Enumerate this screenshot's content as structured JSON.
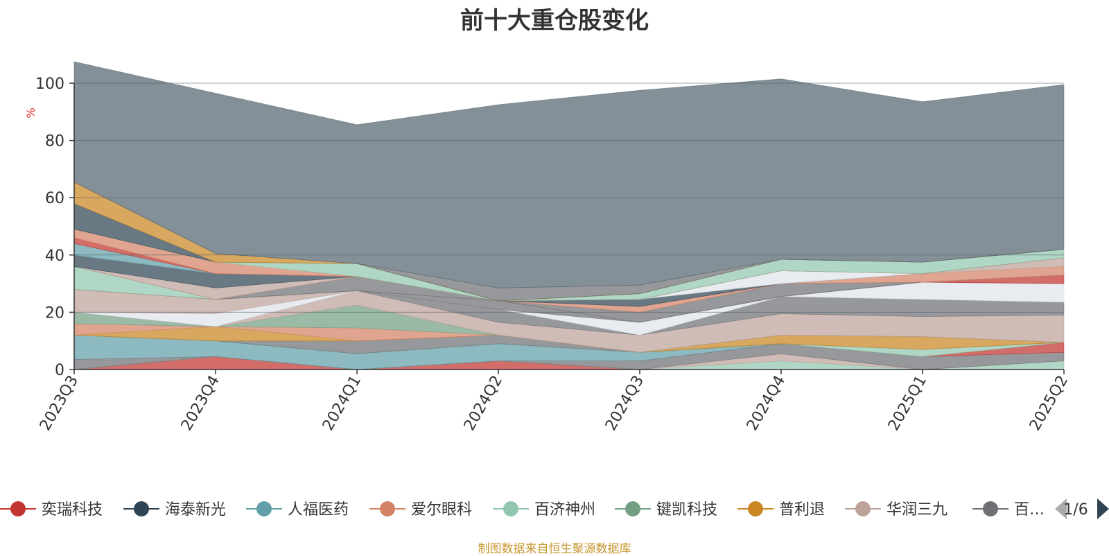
{
  "title": "前十大重仓股变化",
  "footer": "制图数据来自恒生聚源数据库",
  "legend": {
    "page_indicator": "1/6",
    "prev_icon": "triangle-left-icon",
    "next_icon": "triangle-right-icon",
    "items": [
      {
        "name": "奕瑞科技",
        "color": "#c23531"
      },
      {
        "name": "海泰新光",
        "color": "#2f4554"
      },
      {
        "name": "人福医药",
        "color": "#61a0a8"
      },
      {
        "name": "爱尔眼科",
        "color": "#d48265"
      },
      {
        "name": "百济神州",
        "color": "#91c7ae"
      },
      {
        "name": "键凯科技",
        "color": "#749f83"
      },
      {
        "name": "普利退",
        "color": "#ca8622"
      },
      {
        "name": "华润三九",
        "color": "#bda29a"
      },
      {
        "name": "百…",
        "color": "#6e7074"
      }
    ]
  },
  "chart_data": {
    "type": "area",
    "stacked": true,
    "title": "前十大重仓股变化",
    "ylabel": "%",
    "ylim": [
      0,
      100
    ],
    "yticks": [
      0,
      20,
      40,
      60,
      80,
      100
    ],
    "grid": true,
    "x": [
      "2023Q3",
      "2023Q4",
      "2024Q1",
      "2024Q2",
      "2024Q3",
      "2024Q4",
      "2025Q1",
      "2025Q2"
    ],
    "series": [
      {
        "name": "奕瑞科技",
        "color": "#c23531",
        "values": [
          0.0,
          4.5,
          0.0,
          3.0,
          0.0,
          0.0,
          0.0,
          0.0
        ]
      },
      {
        "name": "",
        "color": "#91c7ae",
        "values": [
          0.0,
          0.0,
          0.0,
          0.0,
          0.0,
          3.0,
          0.0,
          3.0
        ]
      },
      {
        "name": "",
        "color": "#bda29a",
        "values": [
          0.0,
          0.0,
          0.0,
          0.0,
          0.0,
          2.5,
          0.0,
          0.0
        ]
      },
      {
        "name": "",
        "color": "#6e7074",
        "values": [
          3.5,
          0.0,
          0.0,
          0.0,
          3.0,
          3.5,
          4.5,
          3.0
        ]
      },
      {
        "name": "",
        "color": "#c23531",
        "values": [
          0.0,
          0.0,
          0.0,
          0.0,
          0.0,
          0.0,
          0.0,
          3.5
        ]
      },
      {
        "name": "人福医药",
        "color": "#61a0a8",
        "values": [
          8.5,
          5.5,
          5.5,
          6.0,
          3.0,
          0.0,
          0.0,
          0.0
        ]
      },
      {
        "name": "",
        "color": "#91c7ae",
        "values": [
          0.0,
          0.0,
          0.0,
          0.0,
          0.0,
          0.0,
          2.5,
          0.0
        ]
      },
      {
        "name": "",
        "color": "#6e7074",
        "values": [
          0.0,
          0.0,
          4.5,
          3.0,
          0.0,
          0.0,
          0.0,
          0.0
        ]
      },
      {
        "name": "",
        "color": "#ca8622",
        "values": [
          0.0,
          5.0,
          0.0,
          0.0,
          0.0,
          3.0,
          4.5,
          0.0
        ]
      },
      {
        "name": "爱尔眼科",
        "color": "#d48265",
        "values": [
          4.0,
          0.0,
          4.5,
          0.0,
          0.0,
          0.0,
          0.0,
          0.0
        ]
      },
      {
        "name": "键凯科技",
        "color": "#749f83",
        "values": [
          4.0,
          0.0,
          8.0,
          0.0,
          0.0,
          0.0,
          0.0,
          0.0
        ]
      },
      {
        "name": "华润三九",
        "color": "#bda29a",
        "values": [
          0.0,
          0.0,
          5.0,
          4.5,
          6.0,
          7.5,
          7.0,
          9.5
        ]
      },
      {
        "name": "",
        "color": "#6e7074",
        "values": [
          0.0,
          0.0,
          0.0,
          4.5,
          0.0,
          6.0,
          6.0,
          4.5
        ]
      },
      {
        "name": "",
        "color": "#dfe3ea",
        "values": [
          0.0,
          4.5,
          0.0,
          0.0,
          4.5,
          0.0,
          6.0,
          6.5
        ]
      },
      {
        "name": "",
        "color": "#bda29a",
        "values": [
          8.0,
          5.0,
          0.0,
          0.0,
          0.0,
          0.0,
          0.0,
          0.0
        ]
      },
      {
        "name": "",
        "color": "#6e7074",
        "values": [
          0.0,
          0.0,
          0.0,
          3.0,
          0.0,
          0.0,
          0.0,
          0.0
        ]
      },
      {
        "name": "",
        "color": "#c23531",
        "values": [
          0.0,
          0.0,
          0.0,
          0.0,
          0.0,
          0.0,
          0.0,
          3.0
        ]
      },
      {
        "name": "百济神州",
        "color": "#91c7ae",
        "values": [
          8.0,
          0.0,
          0.0,
          0.0,
          0.0,
          0.0,
          0.0,
          0.0
        ]
      },
      {
        "name": "",
        "color": "#6e7074",
        "values": [
          0.0,
          0.0,
          5.0,
          0.0,
          3.5,
          4.5,
          0.0,
          0.0
        ]
      },
      {
        "name": "",
        "color": "#d48265",
        "values": [
          0.0,
          0.0,
          0.0,
          0.0,
          2.0,
          0.0,
          3.0,
          3.0
        ]
      },
      {
        "name": "",
        "color": "#bda29a",
        "values": [
          0.0,
          4.0,
          0.0,
          0.0,
          0.0,
          0.0,
          0.0,
          3.0
        ]
      },
      {
        "name": "海泰新光",
        "color": "#2f4554",
        "values": [
          4.0,
          5.0,
          0.0,
          0.0,
          2.5,
          0.0,
          0.0,
          0.0
        ]
      },
      {
        "name": "",
        "color": "#dfe3ea",
        "values": [
          0.0,
          0.0,
          0.0,
          0.0,
          0.0,
          4.5,
          0.0,
          0.0
        ]
      },
      {
        "name": "",
        "color": "#61a0a8",
        "values": [
          4.0,
          0.0,
          0.0,
          0.0,
          0.0,
          0.0,
          0.0,
          0.0
        ]
      },
      {
        "name": "",
        "color": "#c23531",
        "values": [
          2.0,
          0.0,
          0.0,
          0.0,
          0.0,
          0.0,
          0.0,
          0.0
        ]
      },
      {
        "name": "",
        "color": "#d48265",
        "values": [
          3.0,
          4.0,
          0.0,
          0.0,
          0.0,
          0.0,
          0.0,
          0.0
        ]
      },
      {
        "name": "",
        "color": "#91c7ae",
        "values": [
          0.0,
          0.0,
          4.5,
          0.0,
          2.0,
          4.0,
          4.0,
          3.0
        ]
      },
      {
        "name": "",
        "color": "#2f4554",
        "values": [
          9.0,
          0.0,
          0.0,
          0.0,
          0.0,
          0.0,
          0.0,
          0.0
        ]
      },
      {
        "name": "普利退",
        "color": "#ca8622",
        "values": [
          7.5,
          3.0,
          0.0,
          0.0,
          0.0,
          0.0,
          0.0,
          0.0
        ]
      },
      {
        "name": "",
        "color": "#6e7074",
        "values": [
          0.0,
          0.0,
          0.0,
          4.5,
          3.0,
          0.0,
          0.0,
          0.0
        ]
      },
      {
        "name": "",
        "color": "#546570",
        "values": [
          42.0,
          56.0,
          48.5,
          64.0,
          68.0,
          63.0,
          56.0,
          57.5
        ]
      }
    ]
  }
}
